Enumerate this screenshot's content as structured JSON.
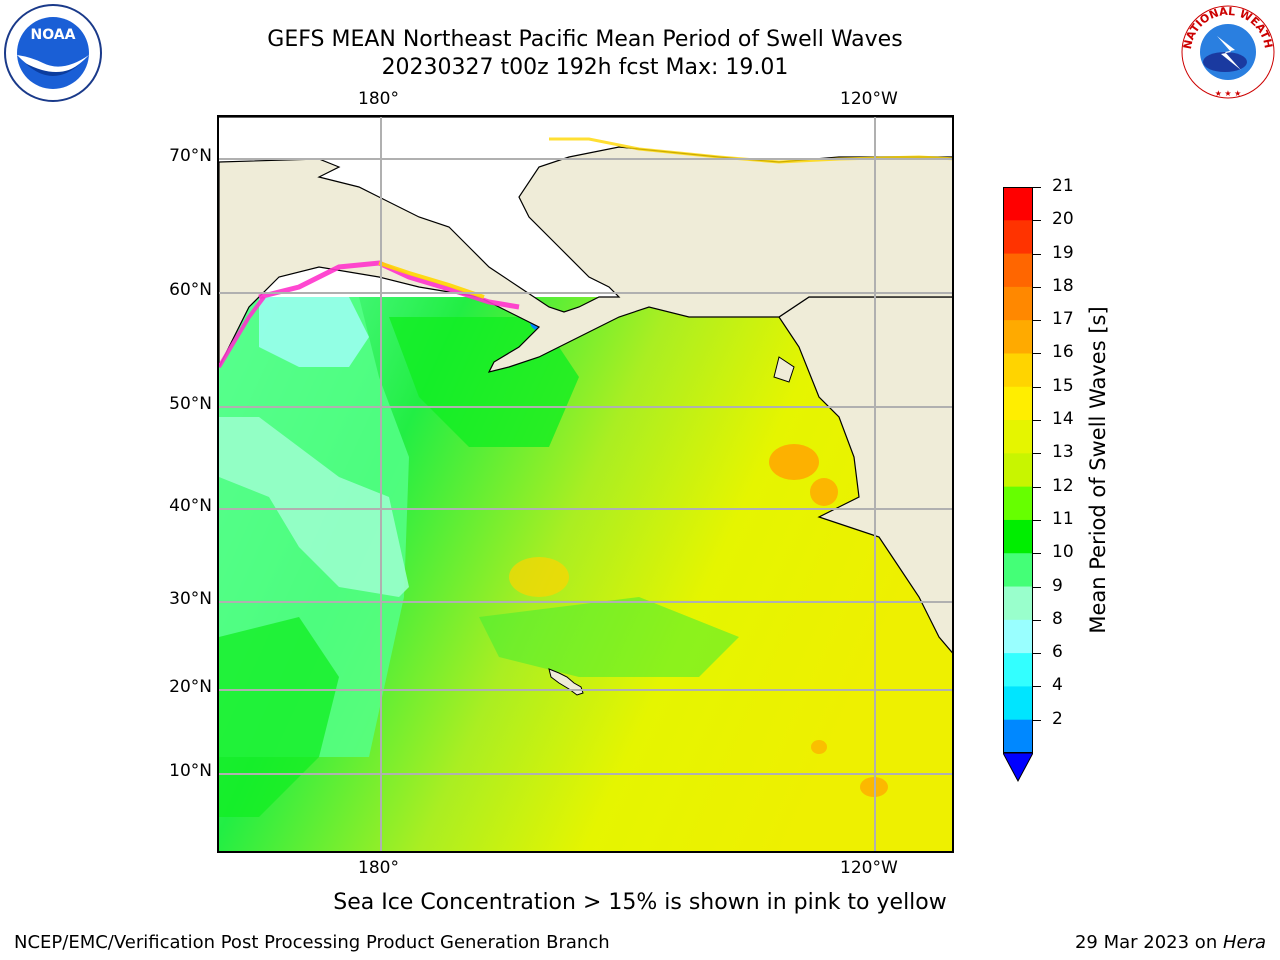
{
  "title": {
    "line1": "GEFS MEAN Northeast Pacific Mean Period of Swell Waves",
    "line2": "20230327 t00z 192h fcst   Max: 19.01"
  },
  "axes": {
    "lon_top": [
      "180°",
      "120°W"
    ],
    "lon_bottom": [
      "180°",
      "120°W"
    ],
    "lat": [
      "70°N",
      "60°N",
      "50°N",
      "40°N",
      "30°N",
      "20°N",
      "10°N"
    ]
  },
  "colorbar": {
    "label": "Mean Period of Swell Waves [s]",
    "ticks": [
      "21",
      "20",
      "19",
      "18",
      "17",
      "16",
      "15",
      "14",
      "13",
      "12",
      "11",
      "10",
      "9",
      "8",
      "6",
      "4",
      "2"
    ],
    "colors": [
      "#ff0000",
      "#ff3300",
      "#ff6600",
      "#ff8800",
      "#ffaa00",
      "#ffd400",
      "#ffee00",
      "#e5f500",
      "#c8f500",
      "#66ff00",
      "#00ee00",
      "#44ff77",
      "#99ffcc",
      "#99ffff",
      "#33ffff",
      "#00e5ff",
      "#0088ff"
    ],
    "extend_color": "#0000ff"
  },
  "colors": {
    "land": "#efecd8",
    "ice_pink": "#ff33cc",
    "ice_yellow": "#ffd700",
    "grid": "#b0b0b0"
  },
  "footnote": "Sea Ice Concentration > 15% is shown in pink to yellow",
  "credit_left": "NCEP/EMC/Verification Post Processing Product Generation Branch",
  "credit_right_prefix": "29 Mar 2023 on ",
  "credit_right_host": "Hera",
  "logos": {
    "left": "noaa-logo",
    "left_text": "NOAA",
    "right": "nws-logo",
    "right_text": "NATIONAL WEATHER SERVICE"
  }
}
